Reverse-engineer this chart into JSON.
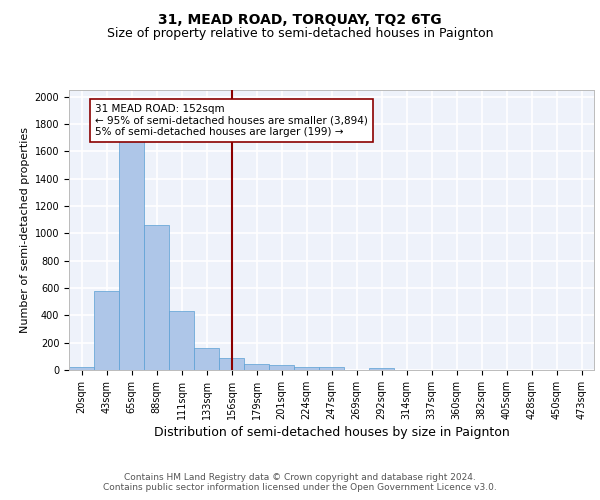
{
  "title": "31, MEAD ROAD, TORQUAY, TQ2 6TG",
  "subtitle": "Size of property relative to semi-detached houses in Paignton",
  "xlabel": "Distribution of semi-detached houses by size in Paignton",
  "ylabel": "Number of semi-detached properties",
  "categories": [
    "20sqm",
    "43sqm",
    "65sqm",
    "88sqm",
    "111sqm",
    "133sqm",
    "156sqm",
    "179sqm",
    "201sqm",
    "224sqm",
    "247sqm",
    "269sqm",
    "292sqm",
    "314sqm",
    "337sqm",
    "360sqm",
    "382sqm",
    "405sqm",
    "428sqm",
    "450sqm",
    "473sqm"
  ],
  "values": [
    25,
    580,
    1680,
    1065,
    430,
    160,
    85,
    45,
    40,
    25,
    20,
    0,
    15,
    0,
    0,
    0,
    0,
    0,
    0,
    0,
    0
  ],
  "bar_color": "#aec6e8",
  "bar_edge_color": "#5a9fd4",
  "vline_x_index": 6,
  "vline_color": "#8b0000",
  "annotation_text": "31 MEAD ROAD: 152sqm\n← 95% of semi-detached houses are smaller (3,894)\n5% of semi-detached houses are larger (199) →",
  "annotation_box_color": "white",
  "annotation_box_edge_color": "#8b0000",
  "ylim": [
    0,
    2050
  ],
  "yticks": [
    0,
    200,
    400,
    600,
    800,
    1000,
    1200,
    1400,
    1600,
    1800,
    2000
  ],
  "footer": "Contains HM Land Registry data © Crown copyright and database right 2024.\nContains public sector information licensed under the Open Government Licence v3.0.",
  "bg_color": "#eef2fa",
  "grid_color": "white",
  "title_fontsize": 10,
  "subtitle_fontsize": 9,
  "xlabel_fontsize": 9,
  "ylabel_fontsize": 8,
  "tick_fontsize": 7,
  "annotation_fontsize": 7.5,
  "footer_fontsize": 6.5
}
